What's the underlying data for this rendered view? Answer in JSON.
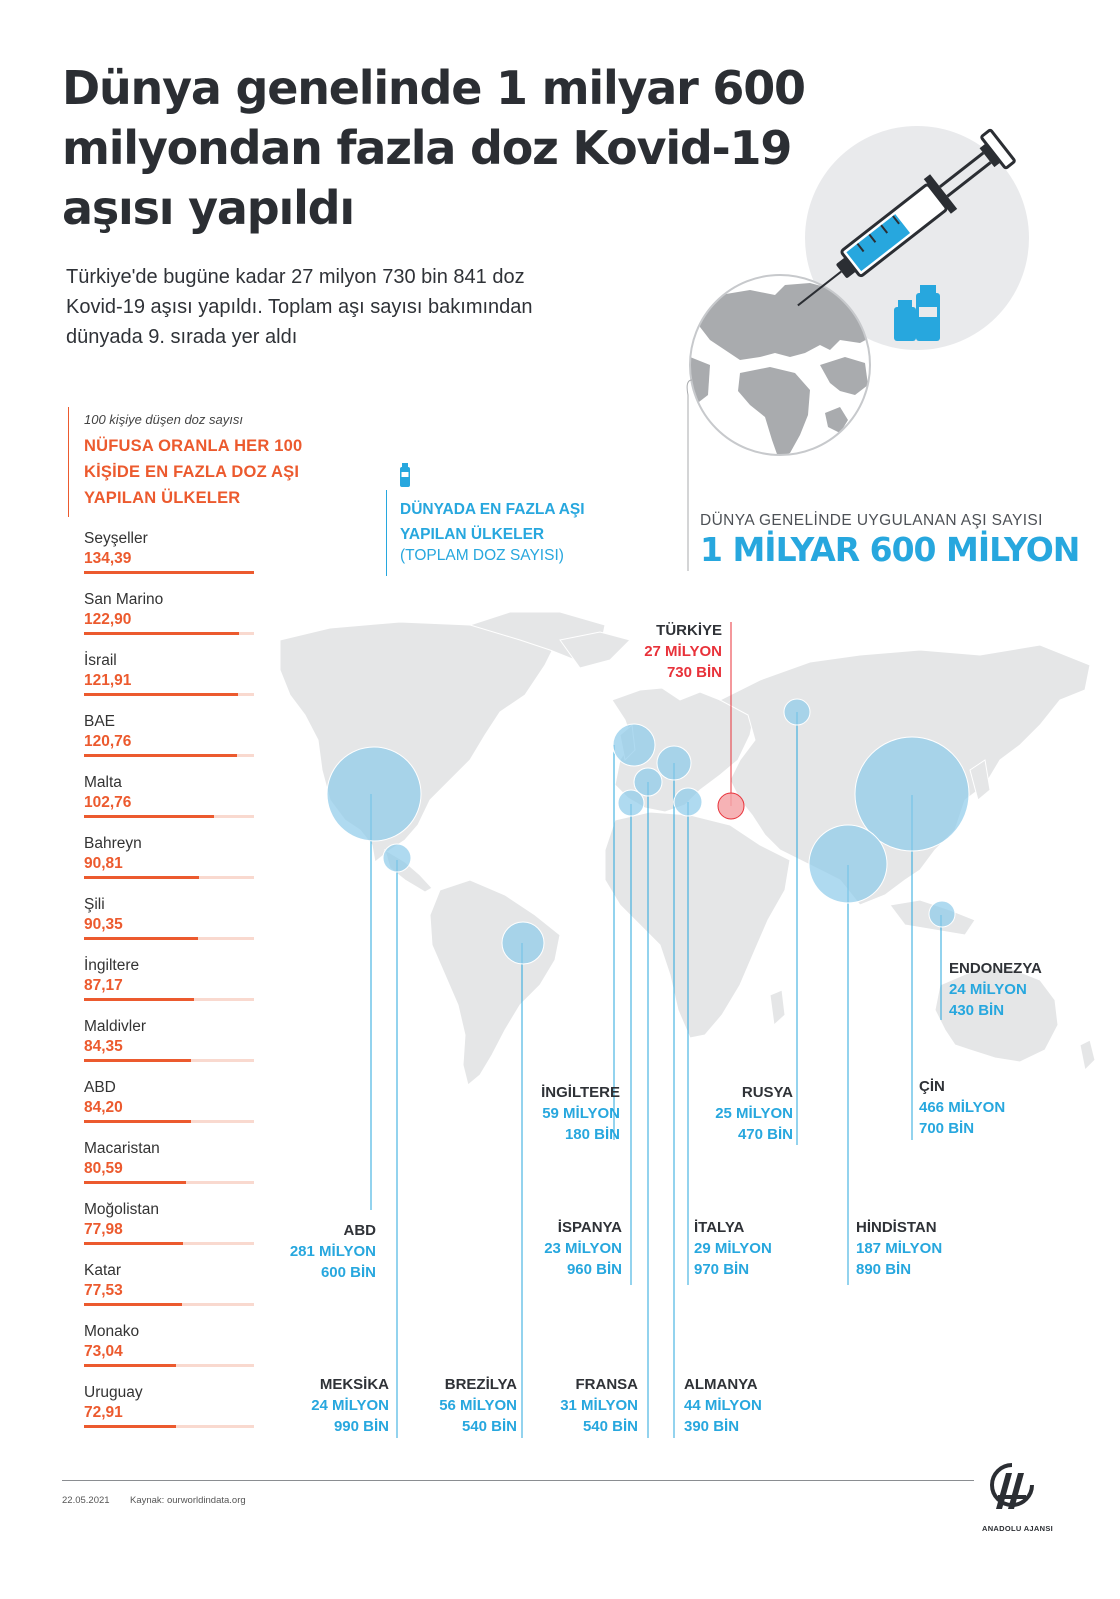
{
  "title": "Dünya genelinde 1 milyar 600 milyondan fazla doz Kovid-19 aşısı yapıldı",
  "subtitle": "Türkiye'de bugüne kadar 27 milyon 730 bin 841 doz Kovid-19 aşısı yapıldı. Toplam aşı sayısı bakımından dünyada 9. sırada yer aldı",
  "ranking": {
    "note": "100 kişiye düşen doz sayısı",
    "heading": "NÜFUSA ORANLA HER 100 KİŞİDE EN FAZLA DOZ AŞI YAPILAN ÜLKELER",
    "colors": {
      "bar": "#ec5a2e",
      "track": "#f9d9cf"
    },
    "max": 134.39,
    "items": [
      {
        "name": "Seyşeller",
        "value_text": "134,39",
        "value": 134.39
      },
      {
        "name": "San Marino",
        "value_text": "122,90",
        "value": 122.9
      },
      {
        "name": "İsrail",
        "value_text": "121,91",
        "value": 121.91
      },
      {
        "name": "BAE",
        "value_text": "120,76",
        "value": 120.76
      },
      {
        "name": "Malta",
        "value_text": "102,76",
        "value": 102.76
      },
      {
        "name": "Bahreyn",
        "value_text": "90,81",
        "value": 90.81
      },
      {
        "name": "Şili",
        "value_text": "90,35",
        "value": 90.35
      },
      {
        "name": "İngiltere",
        "value_text": "87,17",
        "value": 87.17
      },
      {
        "name": "Maldivler",
        "value_text": "84,35",
        "value": 84.35
      },
      {
        "name": "ABD",
        "value_text": "84,20",
        "value": 84.2
      },
      {
        "name": "Macaristan",
        "value_text": "80,59",
        "value": 80.59
      },
      {
        "name": "Moğolistan",
        "value_text": "77,98",
        "value": 77.98
      },
      {
        "name": "Katar",
        "value_text": "77,53",
        "value": 77.53
      },
      {
        "name": "Monako",
        "value_text": "73,04",
        "value": 73.04
      },
      {
        "name": "Uruguay",
        "value_text": "72,91",
        "value": 72.91
      }
    ]
  },
  "top_countries": {
    "heading": "DÜNYADA EN FAZLA AŞI YAPILAN ÜLKELER",
    "subheading": "(TOPLAM DOZ SAYISI)",
    "icon": "vaccine-vial-icon",
    "colors": {
      "accent": "#27a7de",
      "turkey": "#e8323a"
    }
  },
  "world_total": {
    "label": "DÜNYA GENELİNDE UYGULANAN AŞI SAYISI",
    "value": "1 MİLYAR 600 MİLYON"
  },
  "countries": {
    "turkiye": {
      "name": "TÜRKİYE",
      "line1": "27 MİLYON",
      "line2": "730 BİN"
    },
    "ingiltere": {
      "name": "İNGİLTERE",
      "line1": "59 MİLYON",
      "line2": "180 BİN"
    },
    "rusya": {
      "name": "RUSYA",
      "line1": "25 MİLYON",
      "line2": "470 BİN"
    },
    "endonezya": {
      "name": "ENDONEZYA",
      "line1": "24 MİLYON",
      "line2": "430 BİN"
    },
    "cin": {
      "name": "ÇİN",
      "line1": "466 MİLYON",
      "line2": "700 BİN"
    },
    "abd": {
      "name": "ABD",
      "line1": "281 MİLYON",
      "line2": "600 BİN"
    },
    "ispanya": {
      "name": "İSPANYA",
      "line1": "23 MİLYON",
      "line2": "960 BİN"
    },
    "italya": {
      "name": "İTALYA",
      "line1": "29 MİLYON",
      "line2": "970 BİN"
    },
    "hindistan": {
      "name": "HİNDİSTAN",
      "line1": "187 MİLYON",
      "line2": "890 BİN"
    },
    "meksika": {
      "name": "MEKSİKA",
      "line1": "24 MİLYON",
      "line2": "990 BİN"
    },
    "brezilya": {
      "name": "BREZİLYA",
      "line1": "56 MİLYON",
      "line2": "540 BİN"
    },
    "fransa": {
      "name": "FRANSA",
      "line1": "31 MİLYON",
      "line2": "540 BİN"
    },
    "almanya": {
      "name": "ALMANYA",
      "line1": "44 MİLYON",
      "line2": "390 BİN"
    }
  },
  "footer": {
    "date": "22.05.2021",
    "source": "Kaynak: ourworldindata.org",
    "brand": "ANADOLU AJANSI",
    "logo_icon": "aa-logo-icon"
  }
}
